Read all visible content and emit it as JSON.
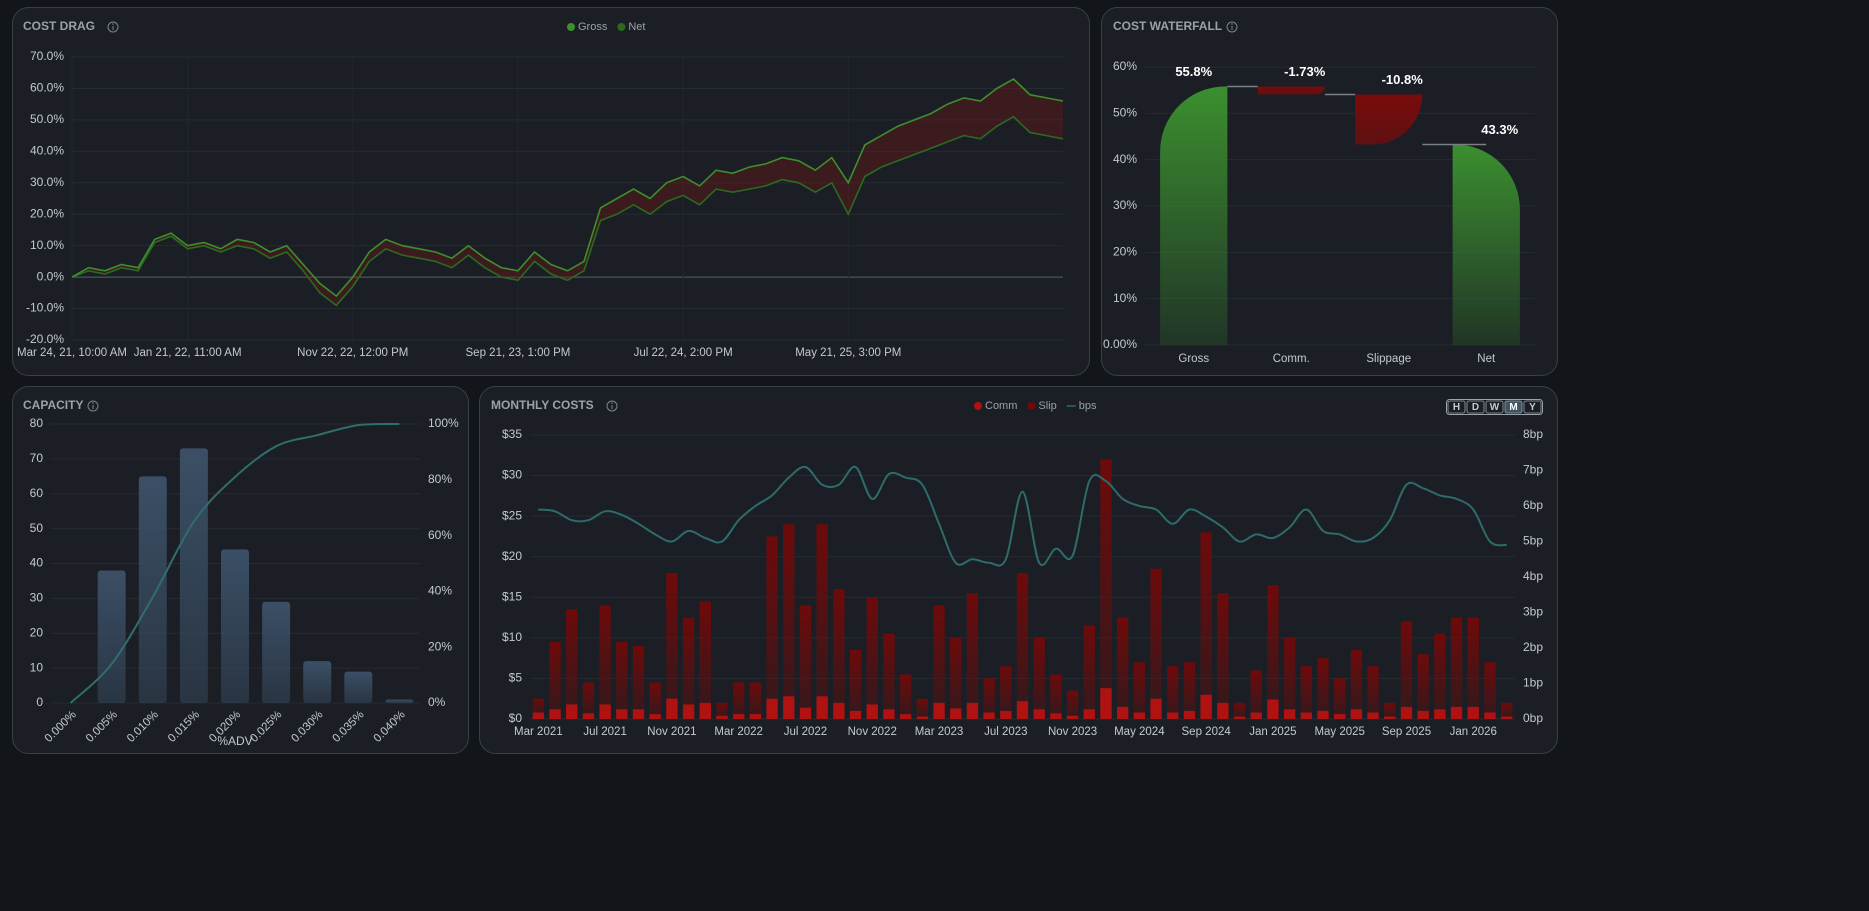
{
  "chart_data": [
    {
      "type": "line",
      "title": "COST DRAG",
      "categories": [
        "Mar 24, 21, 10:00 AM",
        null,
        null,
        null,
        null,
        null,
        null,
        "Jan 21, 22, 11:00 AM",
        null,
        null,
        null,
        null,
        null,
        null,
        null,
        null,
        null,
        "Nov 22, 22, 12:00 PM",
        null,
        null,
        null,
        null,
        null,
        null,
        null,
        null,
        null,
        "Sep 21, 23, 1:00 PM",
        null,
        null,
        null,
        null,
        null,
        null,
        null,
        null,
        null,
        "Jul 22, 24, 2:00 PM",
        null,
        null,
        null,
        null,
        null,
        null,
        null,
        null,
        null,
        "May 21, 25, 3:00 PM",
        null,
        null,
        null,
        null,
        null,
        null,
        null,
        null,
        null,
        null,
        null,
        null,
        null
      ],
      "series": [
        {
          "name": "Gross",
          "color": "#3c8f2c",
          "values": [
            0,
            3,
            2,
            4,
            3,
            12,
            14,
            10,
            11,
            9,
            12,
            11,
            8,
            10,
            4,
            -2,
            -6,
            0,
            8,
            12,
            10,
            9,
            8,
            6,
            10,
            6,
            3,
            2,
            8,
            4,
            2,
            5,
            22,
            25,
            28,
            25,
            30,
            32,
            29,
            34,
            33,
            35,
            36,
            38,
            37,
            34,
            38,
            30,
            42,
            45,
            48,
            50,
            52,
            55,
            57,
            56,
            60,
            63,
            58,
            57,
            56
          ]
        },
        {
          "name": "Net",
          "color": "#2b6a1f",
          "values": [
            0,
            2,
            1,
            3,
            2,
            11,
            13,
            9,
            10,
            8,
            10,
            9,
            6,
            8,
            2,
            -5,
            -9,
            -3,
            5,
            9,
            7,
            6,
            5,
            3,
            7,
            3,
            0,
            -1,
            5,
            1,
            -1,
            2,
            18,
            20,
            23,
            20,
            24,
            26,
            23,
            28,
            27,
            28,
            29,
            31,
            30,
            27,
            30,
            20,
            32,
            35,
            37,
            39,
            41,
            43,
            45,
            44,
            48,
            51,
            46,
            45,
            44
          ]
        }
      ],
      "ylim": [
        -20,
        70
      ],
      "yticks": [
        {
          "value": -20,
          "label": "-20.0%"
        },
        {
          "value": -10,
          "label": "-10.0%"
        },
        {
          "value": 0,
          "label": "0.0%"
        },
        {
          "value": 10,
          "label": "10.0%"
        },
        {
          "value": 20,
          "label": "20.0%"
        },
        {
          "value": 30,
          "label": "30.0%"
        },
        {
          "value": 40,
          "label": "40.0%"
        },
        {
          "value": 50,
          "label": "50.0%"
        },
        {
          "value": 60,
          "label": "60.0%"
        },
        {
          "value": 70,
          "label": "70.0%"
        }
      ],
      "gap_color": "#7a1414",
      "grid": true,
      "legend": "top"
    },
    {
      "type": "waterfall",
      "title": "COST WATERFALL",
      "categories": [
        "Gross",
        "Comm.",
        "Slippage",
        "Net"
      ],
      "measure": [
        "absolute",
        "relative",
        "relative",
        "total"
      ],
      "values": [
        55.8,
        -1.73,
        -10.8,
        43.3
      ],
      "value_labels": [
        "55.8%",
        "-1.73%",
        "-10.8%",
        "43.3%"
      ],
      "colors": {
        "increase": "#3b8f2f",
        "decrease": "#7a0b0b"
      },
      "ylim": [
        0,
        60
      ],
      "yticks": [
        {
          "value": 0,
          "label": "0.00%"
        },
        {
          "value": 10,
          "label": "10%"
        },
        {
          "value": 20,
          "label": "20%"
        },
        {
          "value": 30,
          "label": "30%"
        },
        {
          "value": 40,
          "label": "40%"
        },
        {
          "value": 50,
          "label": "50%"
        },
        {
          "value": 60,
          "label": "60%"
        }
      ],
      "grid": true
    },
    {
      "type": "bar",
      "title": "CAPACITY",
      "xlabel": "%ADV",
      "categories": [
        "0.000%",
        "0.005%",
        "0.010%",
        "0.015%",
        "0.020%",
        "0.025%",
        "0.030%",
        "0.035%",
        "0.040%"
      ],
      "series": [
        {
          "type": "bar",
          "color": "#3b4f66",
          "values": [
            0,
            38,
            65,
            73,
            44,
            29,
            12,
            9,
            1
          ]
        },
        {
          "type": "line",
          "axis": "y2",
          "color": "#2f6e6c",
          "values": [
            0,
            14,
            38,
            65,
            81,
            92,
            96,
            99.6,
            100
          ]
        }
      ],
      "ylim": [
        0,
        80
      ],
      "yticks": [
        0,
        10,
        20,
        30,
        40,
        50,
        60,
        70,
        80
      ],
      "y2lim": [
        0,
        100
      ],
      "y2ticks": [
        {
          "value": 0,
          "label": "0%"
        },
        {
          "value": 20,
          "label": "20%"
        },
        {
          "value": 40,
          "label": "40%"
        },
        {
          "value": 60,
          "label": "60%"
        },
        {
          "value": 80,
          "label": "80%"
        },
        {
          "value": 100,
          "label": "100%"
        }
      ],
      "grid": true
    },
    {
      "type": "stacked_bar",
      "title": "MONTHLY COSTS",
      "categories": [
        "Mar 2021",
        null,
        null,
        null,
        "Jul 2021",
        null,
        null,
        null,
        "Nov 2021",
        null,
        null,
        null,
        "Mar 2022",
        null,
        null,
        null,
        "Jul 2022",
        null,
        null,
        null,
        "Nov 2022",
        null,
        null,
        null,
        "Mar 2023",
        null,
        null,
        null,
        "Jul 2023",
        null,
        null,
        null,
        "Nov 2023",
        null,
        null,
        null,
        "May 2024",
        null,
        null,
        null,
        "Sep 2024",
        null,
        null,
        null,
        "Jan 2025",
        null,
        null,
        null,
        "May 2025",
        null,
        null,
        null,
        "Sep 2025",
        null,
        null,
        null,
        "Jan 2026",
        null,
        null
      ],
      "series": [
        {
          "name": "Comm",
          "type": "bar",
          "color": "#b01212",
          "values": [
            0.8,
            1.2,
            1.8,
            0.7,
            1.8,
            1.2,
            1.2,
            0.6,
            2.5,
            1.8,
            2,
            0.4,
            0.6,
            0.6,
            2.5,
            2.8,
            1.4,
            2.8,
            2,
            1,
            1.8,
            1.2,
            0.6,
            0.3,
            2,
            1.3,
            2,
            0.8,
            1,
            2.2,
            1.2,
            0.7,
            0.4,
            1.2,
            3.8,
            1.5,
            0.8,
            2.5,
            0.8,
            1,
            3,
            2,
            0.3,
            0.8,
            2.4,
            1.2,
            0.8,
            1,
            0.6,
            1.2,
            0.8,
            0.3,
            1.5,
            1,
            1.2,
            1.5,
            1.5,
            0.8,
            0.3
          ]
        },
        {
          "name": "Slip",
          "type": "bar",
          "color": "#6e0a0a",
          "values": [
            1.7,
            8.3,
            11.7,
            3.8,
            12.2,
            8.3,
            7.8,
            3.9,
            15.5,
            10.7,
            12.5,
            1.6,
            3.9,
            3.9,
            20,
            21.2,
            12.6,
            21.2,
            14,
            7.5,
            13.2,
            9.3,
            4.9,
            2.2,
            12,
            8.7,
            13.5,
            4.2,
            5.5,
            15.8,
            8.8,
            4.8,
            3.1,
            10.3,
            28.2,
            11,
            6.2,
            16,
            5.7,
            6,
            20,
            13.5,
            1.7,
            5.2,
            14.1,
            8.8,
            5.7,
            6.5,
            4.4,
            7.3,
            5.7,
            1.7,
            10.5,
            7,
            9.3,
            11,
            11,
            6.2,
            1.7
          ]
        },
        {
          "name": "bps",
          "type": "line",
          "axis": "y2",
          "color": "#2e6b6b",
          "values": [
            5.9,
            5.85,
            5.6,
            5.6,
            5.85,
            5.75,
            5.5,
            5.2,
            5.0,
            5.3,
            5.1,
            5.0,
            5.6,
            6.0,
            6.3,
            6.8,
            7.1,
            6.6,
            6.6,
            7.1,
            6.2,
            6.9,
            6.8,
            6.6,
            5.5,
            4.4,
            4.5,
            4.4,
            4.5,
            6.4,
            4.4,
            4.8,
            4.6,
            6.7,
            6.7,
            6.2,
            6.0,
            5.9,
            5.5,
            5.9,
            5.7,
            5.4,
            5.0,
            5.2,
            5.1,
            5.4,
            5.9,
            5.3,
            5.2,
            5.0,
            5.1,
            5.6,
            6.6,
            6.5,
            6.3,
            6.2,
            5.9,
            5.0,
            4.9
          ]
        }
      ],
      "ylim": [
        0,
        35
      ],
      "yticks": [
        {
          "value": 0,
          "label": "$0"
        },
        {
          "value": 5,
          "label": "$5"
        },
        {
          "value": 10,
          "label": "$10"
        },
        {
          "value": 15,
          "label": "$15"
        },
        {
          "value": 20,
          "label": "$20"
        },
        {
          "value": 25,
          "label": "$25"
        },
        {
          "value": 30,
          "label": "$30"
        },
        {
          "value": 35,
          "label": "$35"
        }
      ],
      "y2lim": [
        0,
        8
      ],
      "y2ticks": [
        {
          "value": 0,
          "label": "0bp"
        },
        {
          "value": 1,
          "label": "1bp"
        },
        {
          "value": 2,
          "label": "2bp"
        },
        {
          "value": 3,
          "label": "3bp"
        },
        {
          "value": 4,
          "label": "4bp"
        },
        {
          "value": 5,
          "label": "5bp"
        },
        {
          "value": 6,
          "label": "6bp"
        },
        {
          "value": 7,
          "label": "7bp"
        },
        {
          "value": 8,
          "label": "8bp"
        }
      ],
      "grid": true,
      "legend": "top"
    }
  ],
  "controls": {
    "buttons": [
      "H",
      "D",
      "W",
      "M",
      "Y"
    ],
    "active": "M"
  }
}
